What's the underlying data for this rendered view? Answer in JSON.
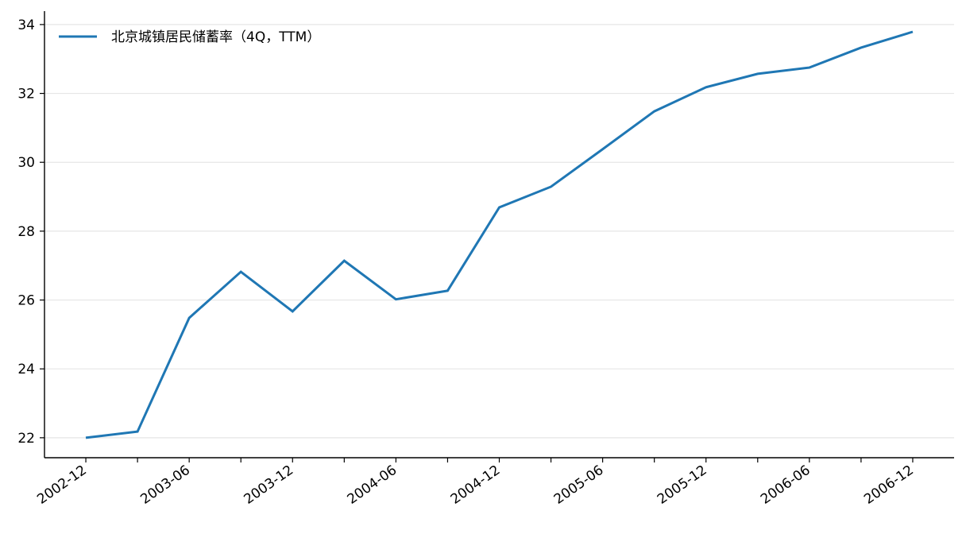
{
  "chart_data": {
    "type": "line",
    "categories": [
      "2002-12",
      null,
      "2003-06",
      null,
      "2003-12",
      null,
      "2004-06",
      null,
      "2004-12",
      null,
      "2005-06",
      null,
      "2005-12",
      null,
      "2006-06",
      null,
      "2006-12"
    ],
    "series": [
      {
        "name": "北京城镇居民储蓄率（4Q，TTM）",
        "color": "#1f77b4",
        "values": [
          22.0,
          22.18,
          25.48,
          26.82,
          25.67,
          27.14,
          26.02,
          26.27,
          28.69,
          29.29,
          30.38,
          31.48,
          32.18,
          32.57,
          32.75,
          33.33,
          33.79
        ]
      }
    ],
    "ylim": [
      21.42,
      34.39
    ],
    "yticks": [
      22,
      24,
      26,
      28,
      30,
      32,
      34
    ],
    "grid": true,
    "legend": "upper left"
  }
}
